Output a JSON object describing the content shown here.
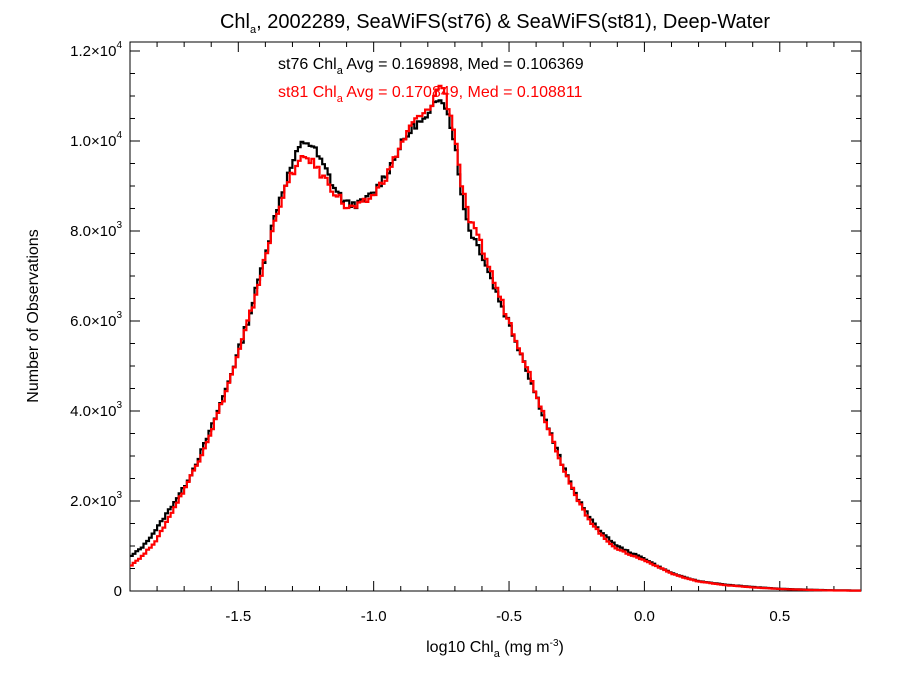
{
  "chart_data": {
    "type": "line",
    "title": {
      "pre": "Chl",
      "sub": "a",
      "post": ", 2002289, SeaWiFS(st76) & SeaWiFS(st81), Deep-Water"
    },
    "xlabel": {
      "pre": "log10 Chl",
      "sub": "a",
      "mid": " (mg m",
      "sup": "-3",
      "post": ")"
    },
    "ylabel": "Number of Observations",
    "xlim": [
      -1.9,
      0.8
    ],
    "ylim": [
      0,
      12200
    ],
    "x_ticks": [
      -1.5,
      -1.0,
      -0.5,
      0.0,
      0.5
    ],
    "x_tick_labels": [
      "-1.5",
      "-1.0",
      "-0.5",
      "0.0",
      "0.5"
    ],
    "y_ticks": [
      0,
      2000,
      4000,
      6000,
      8000,
      10000,
      12000
    ],
    "y_tick_labels": [
      {
        "mant": "0",
        "exp": ""
      },
      {
        "mant": "2.0×10",
        "exp": "3"
      },
      {
        "mant": "4.0×10",
        "exp": "3"
      },
      {
        "mant": "6.0×10",
        "exp": "3"
      },
      {
        "mant": "8.0×10",
        "exp": "3"
      },
      {
        "mant": "1.0×10",
        "exp": "4"
      },
      {
        "mant": "1.2×10",
        "exp": "4"
      }
    ],
    "grid": false,
    "legend": [
      {
        "pre": "st76 Chl",
        "sub": "a",
        "post": " Avg = 0.169898, Med = 0.106369",
        "color": "#000000"
      },
      {
        "pre": "st81 Chl",
        "sub": "a",
        "post": " Avg = 0.170849, Med = 0.108811",
        "color": "#ff0000"
      }
    ],
    "series": [
      {
        "color": "#000000",
        "points": [
          [
            -1.9,
            750
          ],
          [
            -1.85,
            1000
          ],
          [
            -1.8,
            1400
          ],
          [
            -1.75,
            1850
          ],
          [
            -1.7,
            2300
          ],
          [
            -1.65,
            2900
          ],
          [
            -1.6,
            3600
          ],
          [
            -1.55,
            4400
          ],
          [
            -1.5,
            5300
          ],
          [
            -1.45,
            6300
          ],
          [
            -1.4,
            7500
          ],
          [
            -1.35,
            8650
          ],
          [
            -1.3,
            9500
          ],
          [
            -1.27,
            9900
          ],
          [
            -1.25,
            10000
          ],
          [
            -1.22,
            9850
          ],
          [
            -1.2,
            9600
          ],
          [
            -1.17,
            9300
          ],
          [
            -1.15,
            9000
          ],
          [
            -1.12,
            8750
          ],
          [
            -1.1,
            8600
          ],
          [
            -1.05,
            8600
          ],
          [
            -1.0,
            8850
          ],
          [
            -0.95,
            9300
          ],
          [
            -0.9,
            9900
          ],
          [
            -0.85,
            10350
          ],
          [
            -0.8,
            10500
          ],
          [
            -0.77,
            10900
          ],
          [
            -0.75,
            11000
          ],
          [
            -0.73,
            10700
          ],
          [
            -0.7,
            10000
          ],
          [
            -0.68,
            9000
          ],
          [
            -0.65,
            8100
          ],
          [
            -0.6,
            7500
          ],
          [
            -0.55,
            6700
          ],
          [
            -0.5,
            5950
          ],
          [
            -0.45,
            5200
          ],
          [
            -0.4,
            4350
          ],
          [
            -0.35,
            3550
          ],
          [
            -0.3,
            2750
          ],
          [
            -0.25,
            2100
          ],
          [
            -0.2,
            1600
          ],
          [
            -0.15,
            1250
          ],
          [
            -0.1,
            1000
          ],
          [
            -0.05,
            850
          ],
          [
            0.0,
            720
          ],
          [
            0.05,
            550
          ],
          [
            0.1,
            400
          ],
          [
            0.15,
            300
          ],
          [
            0.2,
            220
          ],
          [
            0.3,
            140
          ],
          [
            0.4,
            90
          ],
          [
            0.5,
            50
          ],
          [
            0.6,
            30
          ],
          [
            0.7,
            15
          ],
          [
            0.8,
            10
          ]
        ]
      },
      {
        "color": "#ff0000",
        "points": [
          [
            -1.9,
            550
          ],
          [
            -1.85,
            800
          ],
          [
            -1.8,
            1150
          ],
          [
            -1.75,
            1700
          ],
          [
            -1.7,
            2250
          ],
          [
            -1.65,
            2850
          ],
          [
            -1.6,
            3550
          ],
          [
            -1.55,
            4350
          ],
          [
            -1.5,
            5250
          ],
          [
            -1.45,
            6250
          ],
          [
            -1.4,
            7400
          ],
          [
            -1.35,
            8550
          ],
          [
            -1.3,
            9300
          ],
          [
            -1.27,
            9550
          ],
          [
            -1.25,
            9650
          ],
          [
            -1.22,
            9500
          ],
          [
            -1.2,
            9300
          ],
          [
            -1.17,
            9100
          ],
          [
            -1.15,
            8900
          ],
          [
            -1.12,
            8700
          ],
          [
            -1.1,
            8500
          ],
          [
            -1.05,
            8550
          ],
          [
            -1.0,
            8800
          ],
          [
            -0.95,
            9250
          ],
          [
            -0.9,
            9900
          ],
          [
            -0.85,
            10450
          ],
          [
            -0.8,
            10650
          ],
          [
            -0.77,
            11050
          ],
          [
            -0.75,
            11300
          ],
          [
            -0.73,
            10900
          ],
          [
            -0.7,
            10200
          ],
          [
            -0.68,
            9200
          ],
          [
            -0.65,
            8300
          ],
          [
            -0.6,
            7650
          ],
          [
            -0.55,
            6800
          ],
          [
            -0.5,
            6000
          ],
          [
            -0.45,
            5250
          ],
          [
            -0.4,
            4400
          ],
          [
            -0.35,
            3550
          ],
          [
            -0.3,
            2750
          ],
          [
            -0.25,
            2050
          ],
          [
            -0.2,
            1550
          ],
          [
            -0.15,
            1180
          ],
          [
            -0.1,
            930
          ],
          [
            -0.05,
            800
          ],
          [
            0.0,
            680
          ],
          [
            0.05,
            540
          ],
          [
            0.1,
            390
          ],
          [
            0.15,
            290
          ],
          [
            0.2,
            210
          ],
          [
            0.3,
            130
          ],
          [
            0.4,
            80
          ],
          [
            0.5,
            45
          ],
          [
            0.6,
            25
          ],
          [
            0.7,
            12
          ],
          [
            0.8,
            8
          ]
        ]
      }
    ]
  }
}
